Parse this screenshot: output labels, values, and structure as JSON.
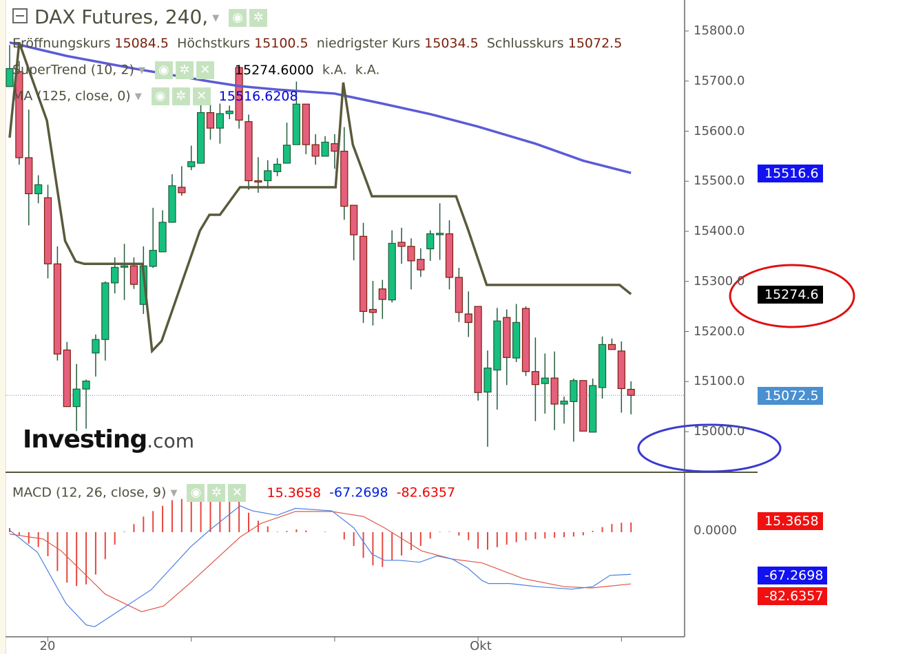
{
  "header": {
    "title": "DAX Futures, 240,",
    "ohlc": {
      "open_label": "Eröffnungskurs",
      "open": "15084.5",
      "high_label": "Höchstkurs",
      "high": "15100.5",
      "low_label": "niedrigster Kurs",
      "low": "15034.5",
      "close_label": "Schlusskurs",
      "close": "15072.5"
    },
    "supertrend": {
      "label": "SuperTrend (10, 2)",
      "value": "15274.6000",
      "extra1": "k.A.",
      "extra2": "k.A."
    },
    "ma": {
      "label": "MA (125, close, 0)",
      "value": "15516.6208"
    },
    "macd": {
      "label": "MACD (12, 26, close, 9)",
      "hist": "15.3658",
      "macd": "-67.2698",
      "signal": "-82.6357"
    }
  },
  "logo": {
    "main": "Investing",
    "suffix": ".com"
  },
  "price_axis": {
    "ticks": [
      "15800.0",
      "15700.0",
      "15600.0",
      "15500.0",
      "15400.0",
      "15300.0",
      "15200.0",
      "15100.0",
      "15000.0"
    ],
    "tags": {
      "ma": "15516.6",
      "supertrend": "15274.6",
      "last": "15072.5"
    }
  },
  "macd_axis": {
    "zero": "0.0000",
    "tags": {
      "hist": "15.3658",
      "macd": "-67.2698",
      "signal": "-82.6357"
    }
  },
  "x_axis": {
    "labels": [
      {
        "bar": 4,
        "text": "20"
      },
      {
        "bar": 49,
        "text": "Okt"
      }
    ],
    "tick_bars": [
      4,
      19,
      34,
      49,
      64
    ]
  },
  "colors": {
    "up": "#17c07e",
    "down": "#e4607c",
    "ma": "#5b5bd6",
    "supertrend": "#5a5a3c",
    "macd": "#4a7fe0",
    "signal": "#e0584a",
    "hist": "#e8453c",
    "last_tag": "#4a8fd0",
    "annotation_red": "#e01010",
    "annotation_blue": "#3a3ad0"
  },
  "chart_data": {
    "type": "candlestick",
    "ylim": [
      14930,
      15870
    ],
    "candles_ohlc": [
      [
        15689,
        15772,
        15689,
        15725
      ],
      [
        15719,
        15740,
        15533,
        15547
      ],
      [
        15547,
        15643,
        15412,
        15475
      ],
      [
        15475,
        15512,
        15456,
        15493
      ],
      [
        15467,
        15493,
        15306,
        15335
      ],
      [
        15335,
        15370,
        15142,
        15155
      ],
      [
        15163,
        15179,
        15050,
        15050
      ],
      [
        15050,
        15135,
        15001,
        15085
      ],
      [
        15085,
        15104,
        15006,
        15101
      ],
      [
        15157,
        15194,
        15110,
        15184
      ],
      [
        15184,
        15300,
        15142,
        15297
      ],
      [
        15297,
        15348,
        15276,
        15328
      ],
      [
        15330,
        15375,
        15263,
        15331
      ],
      [
        15331,
        15348,
        15285,
        15294
      ],
      [
        15254,
        15370,
        15235,
        15331
      ],
      [
        15330,
        15447,
        15327,
        15362
      ],
      [
        15359,
        15442,
        15359,
        15418
      ],
      [
        15418,
        15514,
        15418,
        15491
      ],
      [
        15488,
        15530,
        15471,
        15477
      ],
      [
        15529,
        15571,
        15522,
        15539
      ],
      [
        15536,
        15654,
        15536,
        15637
      ],
      [
        15637,
        15655,
        15583,
        15606
      ],
      [
        15606,
        15655,
        15575,
        15635
      ],
      [
        15635,
        15651,
        15624,
        15640
      ],
      [
        15727,
        15730,
        15605,
        15622
      ],
      [
        15619,
        15633,
        15483,
        15501
      ],
      [
        15501,
        15548,
        15477,
        15500
      ],
      [
        15501,
        15542,
        15485,
        15521
      ],
      [
        15519,
        15546,
        15510,
        15534
      ],
      [
        15536,
        15617,
        15536,
        15572
      ],
      [
        15573,
        15699,
        15573,
        15654
      ],
      [
        15654,
        15654,
        15554,
        15573
      ],
      [
        15573,
        15594,
        15533,
        15550
      ],
      [
        15550,
        15590,
        15550,
        15578
      ],
      [
        15575,
        15594,
        15525,
        15560
      ],
      [
        15560,
        15608,
        15423,
        15450
      ],
      [
        15452,
        15452,
        15342,
        15393
      ],
      [
        15390,
        15417,
        15217,
        15240
      ],
      [
        15244,
        15301,
        15212,
        15238
      ],
      [
        15285,
        15303,
        15225,
        15264
      ],
      [
        15263,
        15402,
        15258,
        15376
      ],
      [
        15378,
        15407,
        15335,
        15370
      ],
      [
        15370,
        15386,
        15284,
        15341
      ],
      [
        15344,
        15366,
        15309,
        15323
      ],
      [
        15365,
        15402,
        15341,
        15395
      ],
      [
        15396,
        15456,
        15343,
        15396
      ],
      [
        15395,
        15422,
        15284,
        15308
      ],
      [
        15308,
        15327,
        15219,
        15238
      ],
      [
        15235,
        15280,
        15189,
        15218
      ],
      [
        15250,
        15250,
        15062,
        15078
      ],
      [
        15079,
        15162,
        14970,
        15127
      ],
      [
        15123,
        15247,
        15044,
        15221
      ],
      [
        15228,
        15244,
        15093,
        15148
      ],
      [
        15147,
        15255,
        15139,
        15218
      ],
      [
        15246,
        15250,
        15111,
        15120
      ],
      [
        15120,
        15188,
        15021,
        15094
      ],
      [
        15096,
        15156,
        15036,
        15107
      ],
      [
        15107,
        15160,
        15003,
        15055
      ],
      [
        15055,
        15070,
        15016,
        15061
      ],
      [
        15060,
        15106,
        14980,
        15102
      ],
      [
        15102,
        15102,
        15001,
        15001
      ],
      [
        14999,
        15106,
        14999,
        15092
      ],
      [
        15088,
        15190,
        15066,
        15174
      ],
      [
        15174,
        15186,
        15164,
        15164
      ],
      [
        15161,
        15180,
        15038,
        15086
      ],
      [
        15084.5,
        15100.5,
        15034.5,
        15072.5
      ]
    ],
    "ma_125": [
      [
        0,
        15777
      ],
      [
        6,
        15750
      ],
      [
        13,
        15725
      ],
      [
        21,
        15699
      ],
      [
        24,
        15690
      ],
      [
        28,
        15683
      ],
      [
        34,
        15675
      ],
      [
        39,
        15655
      ],
      [
        44,
        15634
      ],
      [
        49,
        15609
      ],
      [
        55,
        15575
      ],
      [
        60,
        15541
      ],
      [
        65,
        15516.6
      ]
    ],
    "supertrend": [
      [
        0,
        15587
      ],
      [
        1,
        15777
      ],
      [
        3.9,
        15621
      ],
      [
        5.8,
        15381
      ],
      [
        6.9,
        15340
      ],
      [
        7.8,
        15335
      ],
      [
        13.9,
        15335
      ],
      [
        14.9,
        15161
      ],
      [
        15.9,
        15181
      ],
      [
        19.9,
        15401
      ],
      [
        20.9,
        15433
      ],
      [
        22,
        15433
      ],
      [
        24.1,
        15488
      ],
      [
        34.1,
        15488
      ],
      [
        34.9,
        15697
      ],
      [
        35.9,
        15573
      ],
      [
        37.9,
        15470
      ],
      [
        46.7,
        15470
      ],
      [
        48,
        15401
      ],
      [
        49.9,
        15293
      ],
      [
        63.8,
        15293
      ],
      [
        65,
        15274.6
      ]
    ],
    "macd_line": [
      [
        0,
        3
      ],
      [
        2.9,
        -32
      ],
      [
        5.9,
        -114
      ],
      [
        8,
        -148
      ],
      [
        8.9,
        -151
      ],
      [
        11.9,
        -121
      ],
      [
        14.8,
        -92
      ],
      [
        18.9,
        -24
      ],
      [
        20.9,
        3
      ],
      [
        24.1,
        42
      ],
      [
        25.4,
        34
      ],
      [
        28,
        27
      ],
      [
        29.9,
        38
      ],
      [
        33.7,
        34
      ],
      [
        36,
        7
      ],
      [
        37.9,
        -35
      ],
      [
        39.2,
        -45
      ],
      [
        40.8,
        -45
      ],
      [
        42.9,
        -48
      ],
      [
        44.7,
        -38
      ],
      [
        46.3,
        -43
      ],
      [
        47.9,
        -57
      ],
      [
        49.4,
        -77
      ],
      [
        50.1,
        -82
      ],
      [
        52.3,
        -82
      ],
      [
        55.2,
        -87
      ],
      [
        58.8,
        -91
      ],
      [
        61,
        -87
      ],
      [
        62.8,
        -69
      ],
      [
        65,
        -67.27
      ]
    ],
    "signal_line": [
      [
        0,
        -3
      ],
      [
        3.5,
        -11
      ],
      [
        5.4,
        -30
      ],
      [
        10,
        -99
      ],
      [
        13.8,
        -127
      ],
      [
        16.1,
        -118
      ],
      [
        18.9,
        -81
      ],
      [
        24.1,
        -8
      ],
      [
        26.3,
        14
      ],
      [
        29.9,
        33
      ],
      [
        33.7,
        33
      ],
      [
        37,
        25
      ],
      [
        39.2,
        7
      ],
      [
        43.1,
        -30
      ],
      [
        46.3,
        -43
      ],
      [
        49.4,
        -49
      ],
      [
        53.7,
        -74
      ],
      [
        58,
        -87
      ],
      [
        60.9,
        -89
      ],
      [
        65,
        -82.64
      ]
    ],
    "histogram": [
      6.6,
      -5.5,
      -18.3,
      -23.8,
      -38.4,
      -62,
      -80.5,
      -86,
      -83.4,
      -67.7,
      -43.2,
      -20,
      1,
      12.8,
      24.9,
      33.7,
      42,
      51,
      53,
      56.7,
      63,
      66,
      64,
      58.6,
      49.4,
      31,
      18.3,
      9.2,
      0.7,
      1.8,
      4.4,
      2.6,
      0,
      0.7,
      0,
      -11.7,
      -22,
      -41,
      -53,
      -55.6,
      -44.6,
      -37.3,
      -28.5,
      -22,
      -10.2,
      0.7,
      0.7,
      -5.5,
      -12.8,
      -26.4,
      -28,
      -24,
      -20,
      -16,
      -13,
      -11,
      -10,
      -9,
      -8,
      -7,
      -5,
      2,
      8,
      13,
      15,
      15.37
    ]
  }
}
